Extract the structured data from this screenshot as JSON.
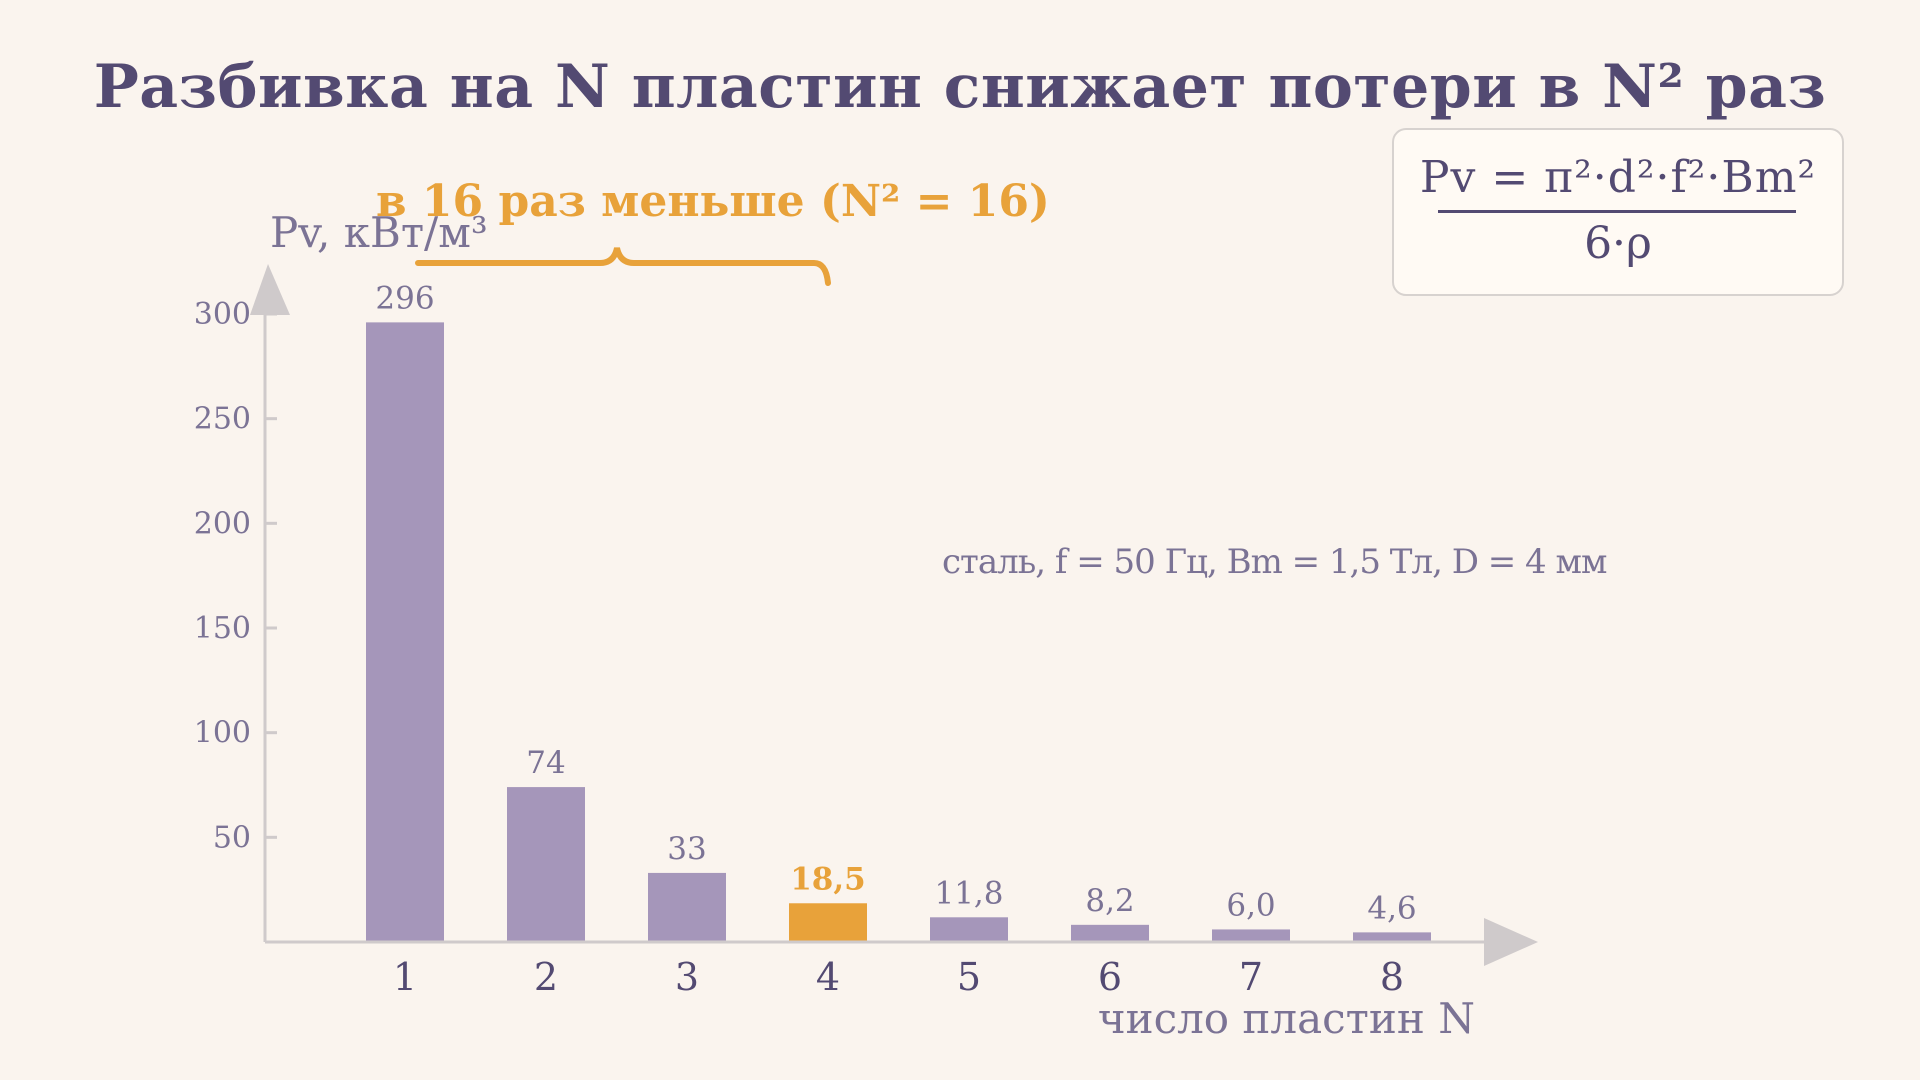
{
  "title": "Разбивка на N пластин снижает потери в N² раз",
  "formula": {
    "numerator": "Pv = π²·d²·f²·Bm²",
    "denominator": "6·ρ"
  },
  "annotation": "в 16 раз меньше (N² = 16)",
  "note": "сталь, f = 50 Гц, Bm = 1,5 Тл, D = 4 мм",
  "colors": {
    "bar": "#a596ba",
    "highlight": "#e8a23a",
    "axis": "#cfcacb",
    "text": "#534a72"
  },
  "chart_data": {
    "type": "bar",
    "title": "",
    "xlabel": "число пластин N",
    "ylabel": "Pv, кВт/м³",
    "categories": [
      "1",
      "2",
      "3",
      "4",
      "5",
      "6",
      "7",
      "8"
    ],
    "values": [
      296,
      74,
      33,
      18.5,
      11.8,
      8.2,
      6.0,
      4.6
    ],
    "value_labels": [
      "296",
      "74",
      "33",
      "18,5",
      "11,8",
      "8,2",
      "6,0",
      "4,6"
    ],
    "highlight_index": 3,
    "yticks": [
      50,
      100,
      150,
      200,
      250,
      300
    ],
    "ylim": [
      0,
      300
    ],
    "grid": false,
    "legend": "none"
  }
}
